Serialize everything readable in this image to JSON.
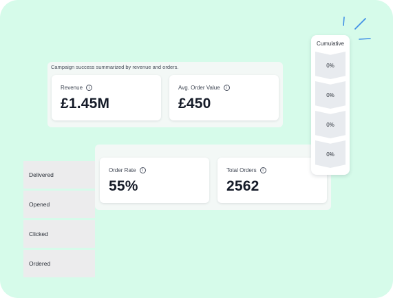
{
  "summary": {
    "caption": "Campaign success summarized by revenue and orders.",
    "cards": [
      {
        "label": "Revenue",
        "value": "£1.45M"
      },
      {
        "label": "Avg. Order Value",
        "value": "£450"
      }
    ]
  },
  "orders": {
    "cards": [
      {
        "label": "Order Rate",
        "value": "55%"
      },
      {
        "label": "Total Orders",
        "value": "2562"
      }
    ]
  },
  "funnel": {
    "steps": [
      {
        "label": "Delivered"
      },
      {
        "label": "Opened"
      },
      {
        "label": "Clicked"
      },
      {
        "label": "Ordered"
      }
    ]
  },
  "cumulative": {
    "title": "Cumulative",
    "values": [
      "0%",
      "0%",
      "0%",
      "0%"
    ]
  },
  "colors": {
    "background": "#d6fbea",
    "accent": "#3f8fe6"
  },
  "icons": {
    "info": "info-icon",
    "sparkle": "sparkle-icon"
  }
}
